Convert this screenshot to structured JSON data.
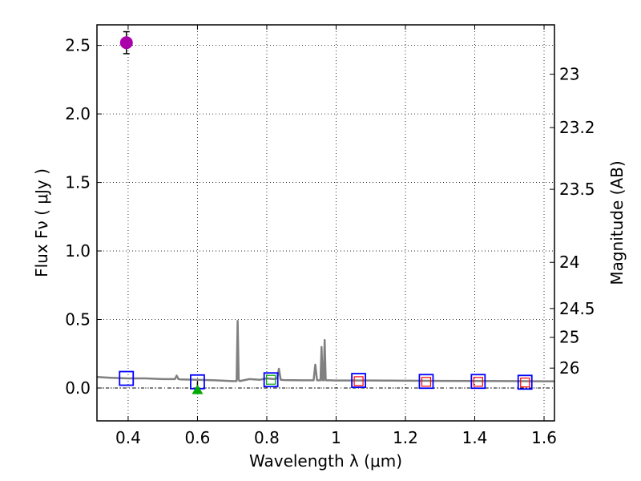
{
  "chart_data": {
    "type": "scatter",
    "xlabel": "Wavelength  λ (μm)",
    "ylabel": "Flux  Fν  ( μJy )",
    "ylabel_right": "Magnitude (AB)",
    "xlim": [
      0.31,
      1.63
    ],
    "ylim": [
      -0.24,
      2.65
    ],
    "grid": true,
    "x_ticks": [
      {
        "value": 0.4,
        "label": "0.4"
      },
      {
        "value": 0.6,
        "label": "0.6"
      },
      {
        "value": 0.8,
        "label": "0.8"
      },
      {
        "value": 1.0,
        "label": "1"
      },
      {
        "value": 1.2,
        "label": "1.2"
      },
      {
        "value": 1.4,
        "label": "1.4"
      },
      {
        "value": 1.6,
        "label": "1.6"
      }
    ],
    "y_ticks": [
      {
        "value": 0.0,
        "label": "0.0"
      },
      {
        "value": 0.5,
        "label": "0.5"
      },
      {
        "value": 1.0,
        "label": "1.0"
      },
      {
        "value": 1.5,
        "label": "1.5"
      },
      {
        "value": 2.0,
        "label": "2.0"
      },
      {
        "value": 2.5,
        "label": "2.5"
      }
    ],
    "mag_ticks": [
      {
        "flux": 2.29,
        "label": "23"
      },
      {
        "flux": 1.9,
        "label": "23.2"
      },
      {
        "flux": 1.45,
        "label": "23.5"
      },
      {
        "flux": 0.917,
        "label": "24"
      },
      {
        "flux": 0.58,
        "label": "24.5"
      },
      {
        "flux": 0.37,
        "label": "25"
      },
      {
        "flux": 0.145,
        "label": "26"
      }
    ],
    "zero_line": 0.0,
    "series": [
      {
        "name": "template spectrum",
        "kind": "line",
        "color": "#808080",
        "x": [
          0.31,
          0.35,
          0.4,
          0.45,
          0.5,
          0.535,
          0.54,
          0.545,
          0.55,
          0.6,
          0.65,
          0.7,
          0.713,
          0.716,
          0.719,
          0.722,
          0.73,
          0.75,
          0.78,
          0.8,
          0.82,
          0.83,
          0.835,
          0.84,
          0.85,
          0.9,
          0.935,
          0.94,
          0.945,
          0.95,
          0.955,
          0.958,
          0.961,
          0.964,
          0.967,
          0.97,
          0.973,
          0.98,
          1.0,
          1.05,
          1.1,
          1.2,
          1.3,
          1.4,
          1.5,
          1.6,
          1.63
        ],
        "y": [
          0.08,
          0.075,
          0.07,
          0.07,
          0.065,
          0.065,
          0.09,
          0.065,
          0.063,
          0.06,
          0.056,
          0.05,
          0.05,
          0.49,
          0.06,
          0.05,
          0.055,
          0.065,
          0.06,
          0.07,
          0.065,
          0.07,
          0.14,
          0.06,
          0.058,
          0.056,
          0.056,
          0.17,
          0.056,
          0.056,
          0.056,
          0.3,
          0.056,
          0.056,
          0.35,
          0.056,
          0.056,
          0.056,
          0.055,
          0.055,
          0.055,
          0.053,
          0.052,
          0.051,
          0.05,
          0.049,
          0.049
        ]
      },
      {
        "name": "model photometry",
        "kind": "square",
        "color": "#0000ff",
        "x": [
          0.395,
          0.6,
          0.812,
          1.065,
          1.26,
          1.41,
          1.545
        ],
        "y": [
          0.07,
          0.045,
          0.06,
          0.055,
          0.048,
          0.048,
          0.042
        ]
      },
      {
        "name": "observed (small)",
        "kind": "square-small",
        "color": "#ff0000",
        "x": [
          1.065,
          1.26,
          1.41,
          1.545
        ],
        "y": [
          0.05,
          0.045,
          0.045,
          0.04
        ]
      },
      {
        "name": "observed (green)",
        "kind": "square-small",
        "color": "#00aa00",
        "x": [
          0.812
        ],
        "y": [
          0.06
        ]
      },
      {
        "name": "detection",
        "kind": "circle",
        "color": "#aa00aa",
        "x": [
          0.395
        ],
        "y": [
          2.52
        ],
        "yerr": [
          0.08
        ]
      },
      {
        "name": "upper limit",
        "kind": "triangle",
        "color": "#00aa00",
        "x": [
          0.6
        ],
        "y": [
          -0.01
        ]
      }
    ]
  }
}
